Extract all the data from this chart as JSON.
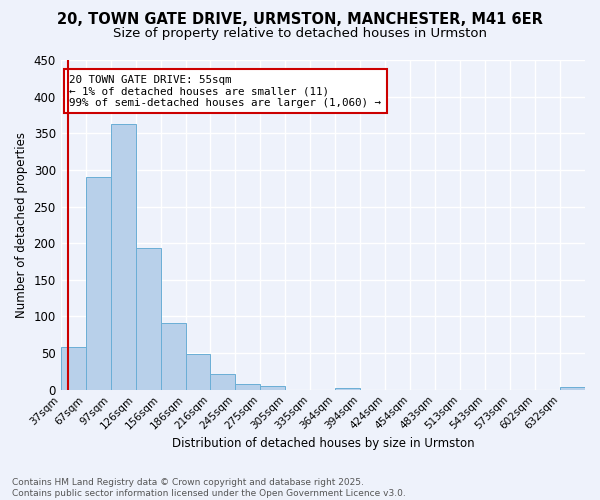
{
  "title_line1": "20, TOWN GATE DRIVE, URMSTON, MANCHESTER, M41 6ER",
  "title_line2": "Size of property relative to detached houses in Urmston",
  "xlabel": "Distribution of detached houses by size in Urmston",
  "ylabel": "Number of detached properties",
  "bin_labels": [
    "37sqm",
    "67sqm",
    "97sqm",
    "126sqm",
    "156sqm",
    "186sqm",
    "216sqm",
    "245sqm",
    "275sqm",
    "305sqm",
    "335sqm",
    "364sqm",
    "394sqm",
    "424sqm",
    "454sqm",
    "483sqm",
    "513sqm",
    "543sqm",
    "573sqm",
    "602sqm",
    "632sqm"
  ],
  "bar_heights": [
    58,
    290,
    362,
    193,
    91,
    49,
    21,
    8,
    5,
    0,
    0,
    3,
    0,
    0,
    0,
    0,
    0,
    0,
    0,
    0,
    4
  ],
  "bar_color": "#b8d0ea",
  "bar_edge_color": "#6aaed6",
  "vline_color": "#cc0000",
  "vline_bin": 0.3,
  "annotation_text": "20 TOWN GATE DRIVE: 55sqm\n← 1% of detached houses are smaller (11)\n99% of semi-detached houses are larger (1,060) →",
  "annotation_box_facecolor": "#ffffff",
  "annotation_box_edgecolor": "#cc0000",
  "ylim": [
    0,
    450
  ],
  "yticks": [
    0,
    50,
    100,
    150,
    200,
    250,
    300,
    350,
    400,
    450
  ],
  "background_color": "#eef2fb",
  "grid_color": "#ffffff",
  "footer_line1": "Contains HM Land Registry data © Crown copyright and database right 2025.",
  "footer_line2": "Contains public sector information licensed under the Open Government Licence v3.0.",
  "title_fontsize": 10.5,
  "subtitle_fontsize": 9.5,
  "axis_label_fontsize": 8.5,
  "tick_label_fontsize": 7.5,
  "annotation_fontsize": 7.8,
  "footer_fontsize": 6.5
}
